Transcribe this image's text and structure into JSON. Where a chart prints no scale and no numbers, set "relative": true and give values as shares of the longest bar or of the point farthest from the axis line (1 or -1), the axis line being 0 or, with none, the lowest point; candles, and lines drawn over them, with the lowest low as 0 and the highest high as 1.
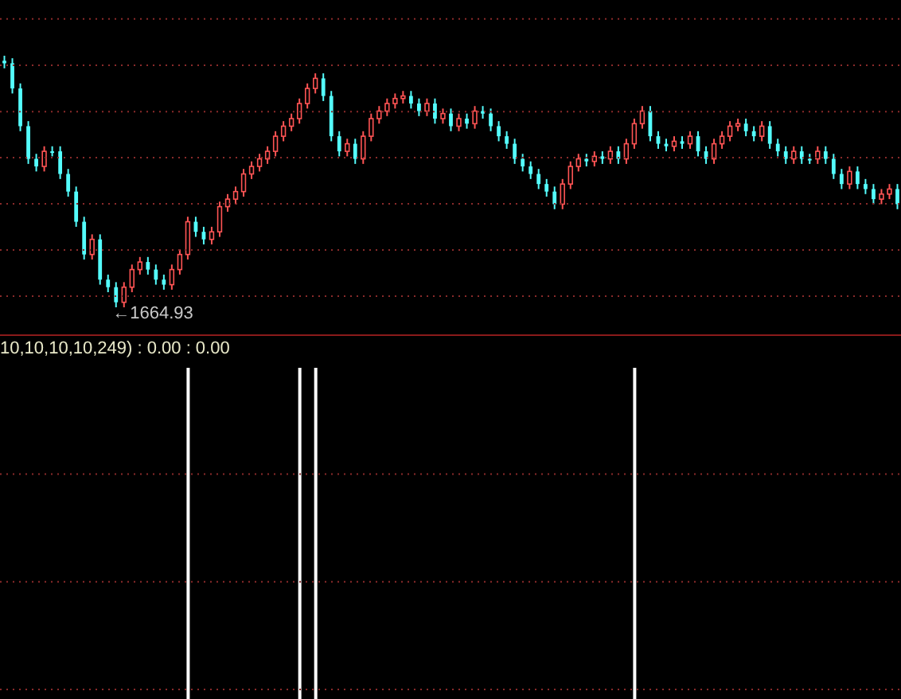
{
  "chart_data": [
    {
      "type": "candlestick",
      "relative": true,
      "ref_lines": [
        {
          "axis": "y",
          "value": 1.146,
          "color": "#8a2a2a",
          "line_style": "dotted"
        },
        {
          "axis": "y",
          "value": 0.962,
          "color": "#8a2a2a",
          "line_style": "dotted"
        },
        {
          "axis": "y",
          "value": 0.778,
          "color": "#8a2a2a",
          "line_style": "dotted"
        },
        {
          "axis": "y",
          "value": 0.595,
          "color": "#8a2a2a",
          "line_style": "dotted"
        },
        {
          "axis": "y",
          "value": 0.411,
          "color": "#8a2a2a",
          "line_style": "dotted"
        },
        {
          "axis": "y",
          "value": 0.228,
          "color": "#8a2a2a",
          "line_style": "dotted"
        },
        {
          "axis": "y",
          "value": 0.044,
          "color": "#8a2a2a",
          "line_style": "dotted"
        }
      ],
      "annotations": [
        "←1664.93"
      ],
      "categories": [
        null,
        null,
        null,
        null,
        null,
        null,
        null,
        null,
        null,
        null,
        null,
        null,
        null,
        null,
        null,
        null,
        null,
        null,
        null,
        null,
        null,
        null,
        null,
        null,
        null,
        null,
        null,
        null,
        null,
        null,
        null,
        null,
        null,
        null,
        null,
        null,
        null,
        null,
        null,
        null,
        null,
        null,
        null,
        null,
        null,
        null,
        null,
        null,
        null,
        null,
        null,
        null,
        null,
        null,
        null,
        null,
        null,
        null,
        null,
        null,
        null,
        null,
        null,
        null,
        null,
        null,
        null,
        null,
        null,
        null,
        null,
        null,
        null,
        null,
        null,
        null,
        null,
        null,
        null,
        null,
        null,
        null,
        null,
        null,
        null,
        null,
        null,
        null,
        null,
        null,
        null,
        null,
        null,
        null,
        null,
        null,
        null,
        null,
        null,
        null,
        null,
        null,
        null,
        null,
        null,
        null,
        null,
        null,
        null,
        null,
        null,
        null,
        null
      ],
      "colors": [
        "#54fcfc",
        "#54fcfc",
        "#54fcfc",
        "#54fcfc",
        "#54fcfc",
        "#ff5454",
        "#54fcfc",
        "#54fcfc",
        "#54fcfc",
        "#54fcfc",
        "#54fcfc",
        "#ff5454",
        "#54fcfc",
        "#54fcfc",
        "#54fcfc",
        "#ff5454",
        "#ff5454",
        "#ff5454",
        "#54fcfc",
        "#54fcfc",
        "#54fcfc",
        "#ff5454",
        "#ff5454",
        "#ff5454",
        "#54fcfc",
        "#54fcfc",
        "#ff5454",
        "#ff5454",
        "#ff5454",
        "#ff5454",
        "#ff5454",
        "#ff5454",
        "#ff5454",
        "#ff5454",
        "#ff5454",
        "#ff5454",
        "#ff5454",
        "#ff5454",
        "#ff5454",
        "#ff5454",
        "#54fcfc",
        "#54fcfc",
        "#54fcfc",
        "#ff5454",
        "#54fcfc",
        "#ff5454",
        "#ff5454",
        "#ff5454",
        "#ff5454",
        "#ff5454",
        "#ff5454",
        "#54fcfc",
        "#54fcfc",
        "#ff5454",
        "#54fcfc",
        "#ff5454",
        "#54fcfc",
        "#ff5454",
        "#54fcfc",
        "#ff5454",
        "#54fcfc",
        "#54fcfc",
        "#54fcfc",
        "#54fcfc",
        "#54fcfc",
        "#54fcfc",
        "#54fcfc",
        "#54fcfc",
        "#54fcfc",
        "#54fcfc",
        "#ff5454",
        "#ff5454",
        "#ff5454",
        "#54fcfc",
        "#ff5454",
        "#54fcfc",
        "#ff5454",
        "#54fcfc",
        "#ff5454",
        "#ff5454",
        "#ff5454",
        "#54fcfc",
        "#54fcfc",
        "#54fcfc",
        "#ff5454",
        "#54fcfc",
        "#ff5454",
        "#54fcfc",
        "#54fcfc",
        "#ff5454",
        "#ff5454",
        "#ff5454",
        "#ff5454",
        "#54fcfc",
        "#54fcfc",
        "#ff5454",
        "#54fcfc",
        "#54fcfc",
        "#54fcfc",
        "#ff5454",
        "#54fcfc",
        "#54fcfc",
        "#ff5454",
        "#54fcfc",
        "#54fcfc",
        "#54fcfc",
        "#ff5454",
        "#54fcfc",
        "#54fcfc",
        "#54fcfc",
        "#ff5454",
        "#ff5454",
        "#54fcfc"
      ],
      "ohlc": [
        [
          0.98,
          1.0,
          0.95,
          0.97
        ],
        [
          0.97,
          0.99,
          0.85,
          0.87
        ],
        [
          0.87,
          0.89,
          0.7,
          0.72
        ],
        [
          0.72,
          0.74,
          0.57,
          0.59
        ],
        [
          0.59,
          0.61,
          0.54,
          0.56
        ],
        [
          0.56,
          0.64,
          0.54,
          0.62
        ],
        [
          0.62,
          0.64,
          0.6,
          0.62
        ],
        [
          0.62,
          0.64,
          0.51,
          0.53
        ],
        [
          0.53,
          0.55,
          0.44,
          0.46
        ],
        [
          0.46,
          0.48,
          0.32,
          0.34
        ],
        [
          0.34,
          0.36,
          0.19,
          0.21
        ],
        [
          0.21,
          0.29,
          0.19,
          0.27
        ],
        [
          0.27,
          0.29,
          0.09,
          0.11
        ],
        [
          0.11,
          0.13,
          0.06,
          0.08
        ],
        [
          0.08,
          0.1,
          0.0,
          0.02
        ],
        [
          0.02,
          0.1,
          0.0,
          0.08
        ],
        [
          0.08,
          0.17,
          0.06,
          0.15
        ],
        [
          0.15,
          0.2,
          0.13,
          0.18
        ],
        [
          0.18,
          0.2,
          0.13,
          0.15
        ],
        [
          0.15,
          0.17,
          0.09,
          0.11
        ],
        [
          0.11,
          0.13,
          0.07,
          0.09
        ],
        [
          0.09,
          0.17,
          0.07,
          0.15
        ],
        [
          0.15,
          0.23,
          0.13,
          0.21
        ],
        [
          0.21,
          0.36,
          0.19,
          0.34
        ],
        [
          0.34,
          0.36,
          0.28,
          0.3
        ],
        [
          0.3,
          0.32,
          0.25,
          0.27
        ],
        [
          0.27,
          0.32,
          0.25,
          0.3
        ],
        [
          0.3,
          0.42,
          0.28,
          0.4
        ],
        [
          0.4,
          0.45,
          0.38,
          0.43
        ],
        [
          0.43,
          0.48,
          0.41,
          0.46
        ],
        [
          0.46,
          0.55,
          0.44,
          0.53
        ],
        [
          0.53,
          0.58,
          0.51,
          0.56
        ],
        [
          0.56,
          0.61,
          0.54,
          0.59
        ],
        [
          0.59,
          0.64,
          0.57,
          0.62
        ],
        [
          0.62,
          0.7,
          0.6,
          0.68
        ],
        [
          0.68,
          0.74,
          0.66,
          0.72
        ],
        [
          0.72,
          0.77,
          0.7,
          0.75
        ],
        [
          0.75,
          0.83,
          0.73,
          0.81
        ],
        [
          0.81,
          0.89,
          0.79,
          0.87
        ],
        [
          0.87,
          0.93,
          0.85,
          0.91
        ],
        [
          0.91,
          0.93,
          0.82,
          0.84
        ],
        [
          0.84,
          0.86,
          0.66,
          0.68
        ],
        [
          0.68,
          0.7,
          0.6,
          0.62
        ],
        [
          0.62,
          0.67,
          0.6,
          0.65
        ],
        [
          0.65,
          0.67,
          0.57,
          0.59
        ],
        [
          0.59,
          0.7,
          0.57,
          0.68
        ],
        [
          0.68,
          0.77,
          0.66,
          0.75
        ],
        [
          0.75,
          0.8,
          0.73,
          0.78
        ],
        [
          0.78,
          0.83,
          0.76,
          0.81
        ],
        [
          0.81,
          0.85,
          0.79,
          0.83
        ],
        [
          0.83,
          0.86,
          0.81,
          0.84
        ],
        [
          0.84,
          0.86,
          0.79,
          0.81
        ],
        [
          0.81,
          0.83,
          0.76,
          0.78
        ],
        [
          0.78,
          0.83,
          0.76,
          0.81
        ],
        [
          0.81,
          0.83,
          0.73,
          0.75
        ],
        [
          0.75,
          0.79,
          0.73,
          0.77
        ],
        [
          0.77,
          0.79,
          0.7,
          0.72
        ],
        [
          0.72,
          0.77,
          0.7,
          0.75
        ],
        [
          0.75,
          0.77,
          0.71,
          0.73
        ],
        [
          0.73,
          0.8,
          0.71,
          0.78
        ],
        [
          0.78,
          0.8,
          0.75,
          0.77
        ],
        [
          0.77,
          0.79,
          0.7,
          0.72
        ],
        [
          0.72,
          0.74,
          0.66,
          0.68
        ],
        [
          0.68,
          0.7,
          0.63,
          0.65
        ],
        [
          0.65,
          0.67,
          0.57,
          0.59
        ],
        [
          0.59,
          0.61,
          0.54,
          0.56
        ],
        [
          0.56,
          0.58,
          0.51,
          0.53
        ],
        [
          0.53,
          0.55,
          0.47,
          0.49
        ],
        [
          0.49,
          0.51,
          0.44,
          0.46
        ],
        [
          0.46,
          0.48,
          0.39,
          0.41
        ],
        [
          0.41,
          0.51,
          0.39,
          0.49
        ],
        [
          0.49,
          0.58,
          0.47,
          0.56
        ],
        [
          0.56,
          0.61,
          0.54,
          0.59
        ],
        [
          0.59,
          0.61,
          0.56,
          0.58
        ],
        [
          0.58,
          0.62,
          0.56,
          0.6
        ],
        [
          0.6,
          0.62,
          0.57,
          0.59
        ],
        [
          0.59,
          0.64,
          0.57,
          0.62
        ],
        [
          0.62,
          0.64,
          0.57,
          0.59
        ],
        [
          0.59,
          0.67,
          0.57,
          0.65
        ],
        [
          0.65,
          0.75,
          0.63,
          0.73
        ],
        [
          0.73,
          0.8,
          0.71,
          0.78
        ],
        [
          0.78,
          0.8,
          0.66,
          0.68
        ],
        [
          0.68,
          0.7,
          0.63,
          0.65
        ],
        [
          0.65,
          0.67,
          0.62,
          0.64
        ],
        [
          0.64,
          0.68,
          0.62,
          0.66
        ],
        [
          0.66,
          0.68,
          0.63,
          0.65
        ],
        [
          0.65,
          0.7,
          0.63,
          0.68
        ],
        [
          0.68,
          0.7,
          0.6,
          0.62
        ],
        [
          0.62,
          0.64,
          0.57,
          0.59
        ],
        [
          0.59,
          0.67,
          0.57,
          0.65
        ],
        [
          0.65,
          0.7,
          0.63,
          0.68
        ],
        [
          0.68,
          0.74,
          0.66,
          0.72
        ],
        [
          0.72,
          0.75,
          0.7,
          0.73
        ],
        [
          0.73,
          0.75,
          0.68,
          0.7
        ],
        [
          0.7,
          0.72,
          0.66,
          0.68
        ],
        [
          0.68,
          0.74,
          0.66,
          0.72
        ],
        [
          0.72,
          0.74,
          0.63,
          0.65
        ],
        [
          0.65,
          0.67,
          0.6,
          0.62
        ],
        [
          0.62,
          0.64,
          0.57,
          0.59
        ],
        [
          0.59,
          0.64,
          0.57,
          0.62
        ],
        [
          0.62,
          0.64,
          0.57,
          0.59
        ],
        [
          0.59,
          0.61,
          0.57,
          0.59
        ],
        [
          0.59,
          0.64,
          0.57,
          0.62
        ],
        [
          0.62,
          0.64,
          0.57,
          0.59
        ],
        [
          0.59,
          0.61,
          0.51,
          0.53
        ],
        [
          0.53,
          0.55,
          0.47,
          0.49
        ],
        [
          0.49,
          0.56,
          0.47,
          0.54
        ],
        [
          0.54,
          0.56,
          0.47,
          0.49
        ],
        [
          0.49,
          0.51,
          0.45,
          0.47
        ],
        [
          0.47,
          0.49,
          0.41,
          0.43
        ],
        [
          0.43,
          0.47,
          0.41,
          0.45
        ],
        [
          0.45,
          0.49,
          0.43,
          0.47
        ],
        [
          0.47,
          0.49,
          0.39,
          0.41
        ]
      ]
    },
    {
      "type": "bar",
      "relative": true,
      "ref_lines": [
        {
          "axis": "y",
          "value": 0.679,
          "color": "#8a2a2a",
          "line_style": "dotted"
        },
        {
          "axis": "y",
          "value": 0.354,
          "color": "#8a2a2a",
          "line_style": "dotted"
        },
        {
          "axis": "y",
          "value": 0.029,
          "color": "#8a2a2a",
          "line_style": "dotted"
        }
      ],
      "title": "10,10,10,10,249) : 0.00 : 0.00",
      "color": "#ffffff",
      "categories": [
        null,
        null,
        null,
        null,
        null,
        null,
        null,
        null,
        null,
        null,
        null,
        null,
        null,
        null,
        null,
        null,
        null,
        null,
        null,
        null,
        null,
        null,
        null,
        null,
        null,
        null,
        null,
        null,
        null,
        null,
        null,
        null,
        null,
        null,
        null,
        null,
        null,
        null,
        null,
        null,
        null,
        null,
        null,
        null,
        null,
        null,
        null,
        null,
        null,
        null,
        null,
        null,
        null,
        null,
        null,
        null,
        null,
        null,
        null,
        null,
        null,
        null,
        null,
        null,
        null,
        null,
        null,
        null,
        null,
        null,
        null,
        null,
        null,
        null,
        null,
        null,
        null,
        null,
        null,
        null,
        null,
        null,
        null,
        null,
        null,
        null,
        null,
        null,
        null,
        null,
        null,
        null,
        null,
        null,
        null,
        null,
        null,
        null,
        null,
        null,
        null,
        null,
        null,
        null,
        null,
        null,
        null,
        null,
        null,
        null,
        null,
        null,
        null
      ],
      "values": [
        null,
        null,
        null,
        null,
        null,
        null,
        null,
        null,
        null,
        null,
        null,
        null,
        null,
        null,
        null,
        null,
        null,
        null,
        null,
        null,
        null,
        null,
        null,
        1,
        null,
        null,
        null,
        null,
        null,
        null,
        null,
        null,
        null,
        null,
        null,
        null,
        null,
        1,
        null,
        1,
        null,
        null,
        null,
        null,
        null,
        null,
        null,
        null,
        null,
        null,
        null,
        null,
        null,
        null,
        null,
        null,
        null,
        null,
        null,
        null,
        null,
        null,
        null,
        null,
        null,
        null,
        null,
        null,
        null,
        null,
        null,
        null,
        null,
        null,
        null,
        null,
        null,
        null,
        null,
        1,
        null,
        null,
        null,
        null,
        null,
        null,
        null,
        null,
        null,
        null,
        null,
        null,
        null,
        null,
        null,
        null,
        null,
        null,
        null,
        null,
        null,
        null,
        null,
        null,
        null,
        null,
        null,
        null,
        null,
        null,
        null,
        null,
        null
      ]
    }
  ]
}
